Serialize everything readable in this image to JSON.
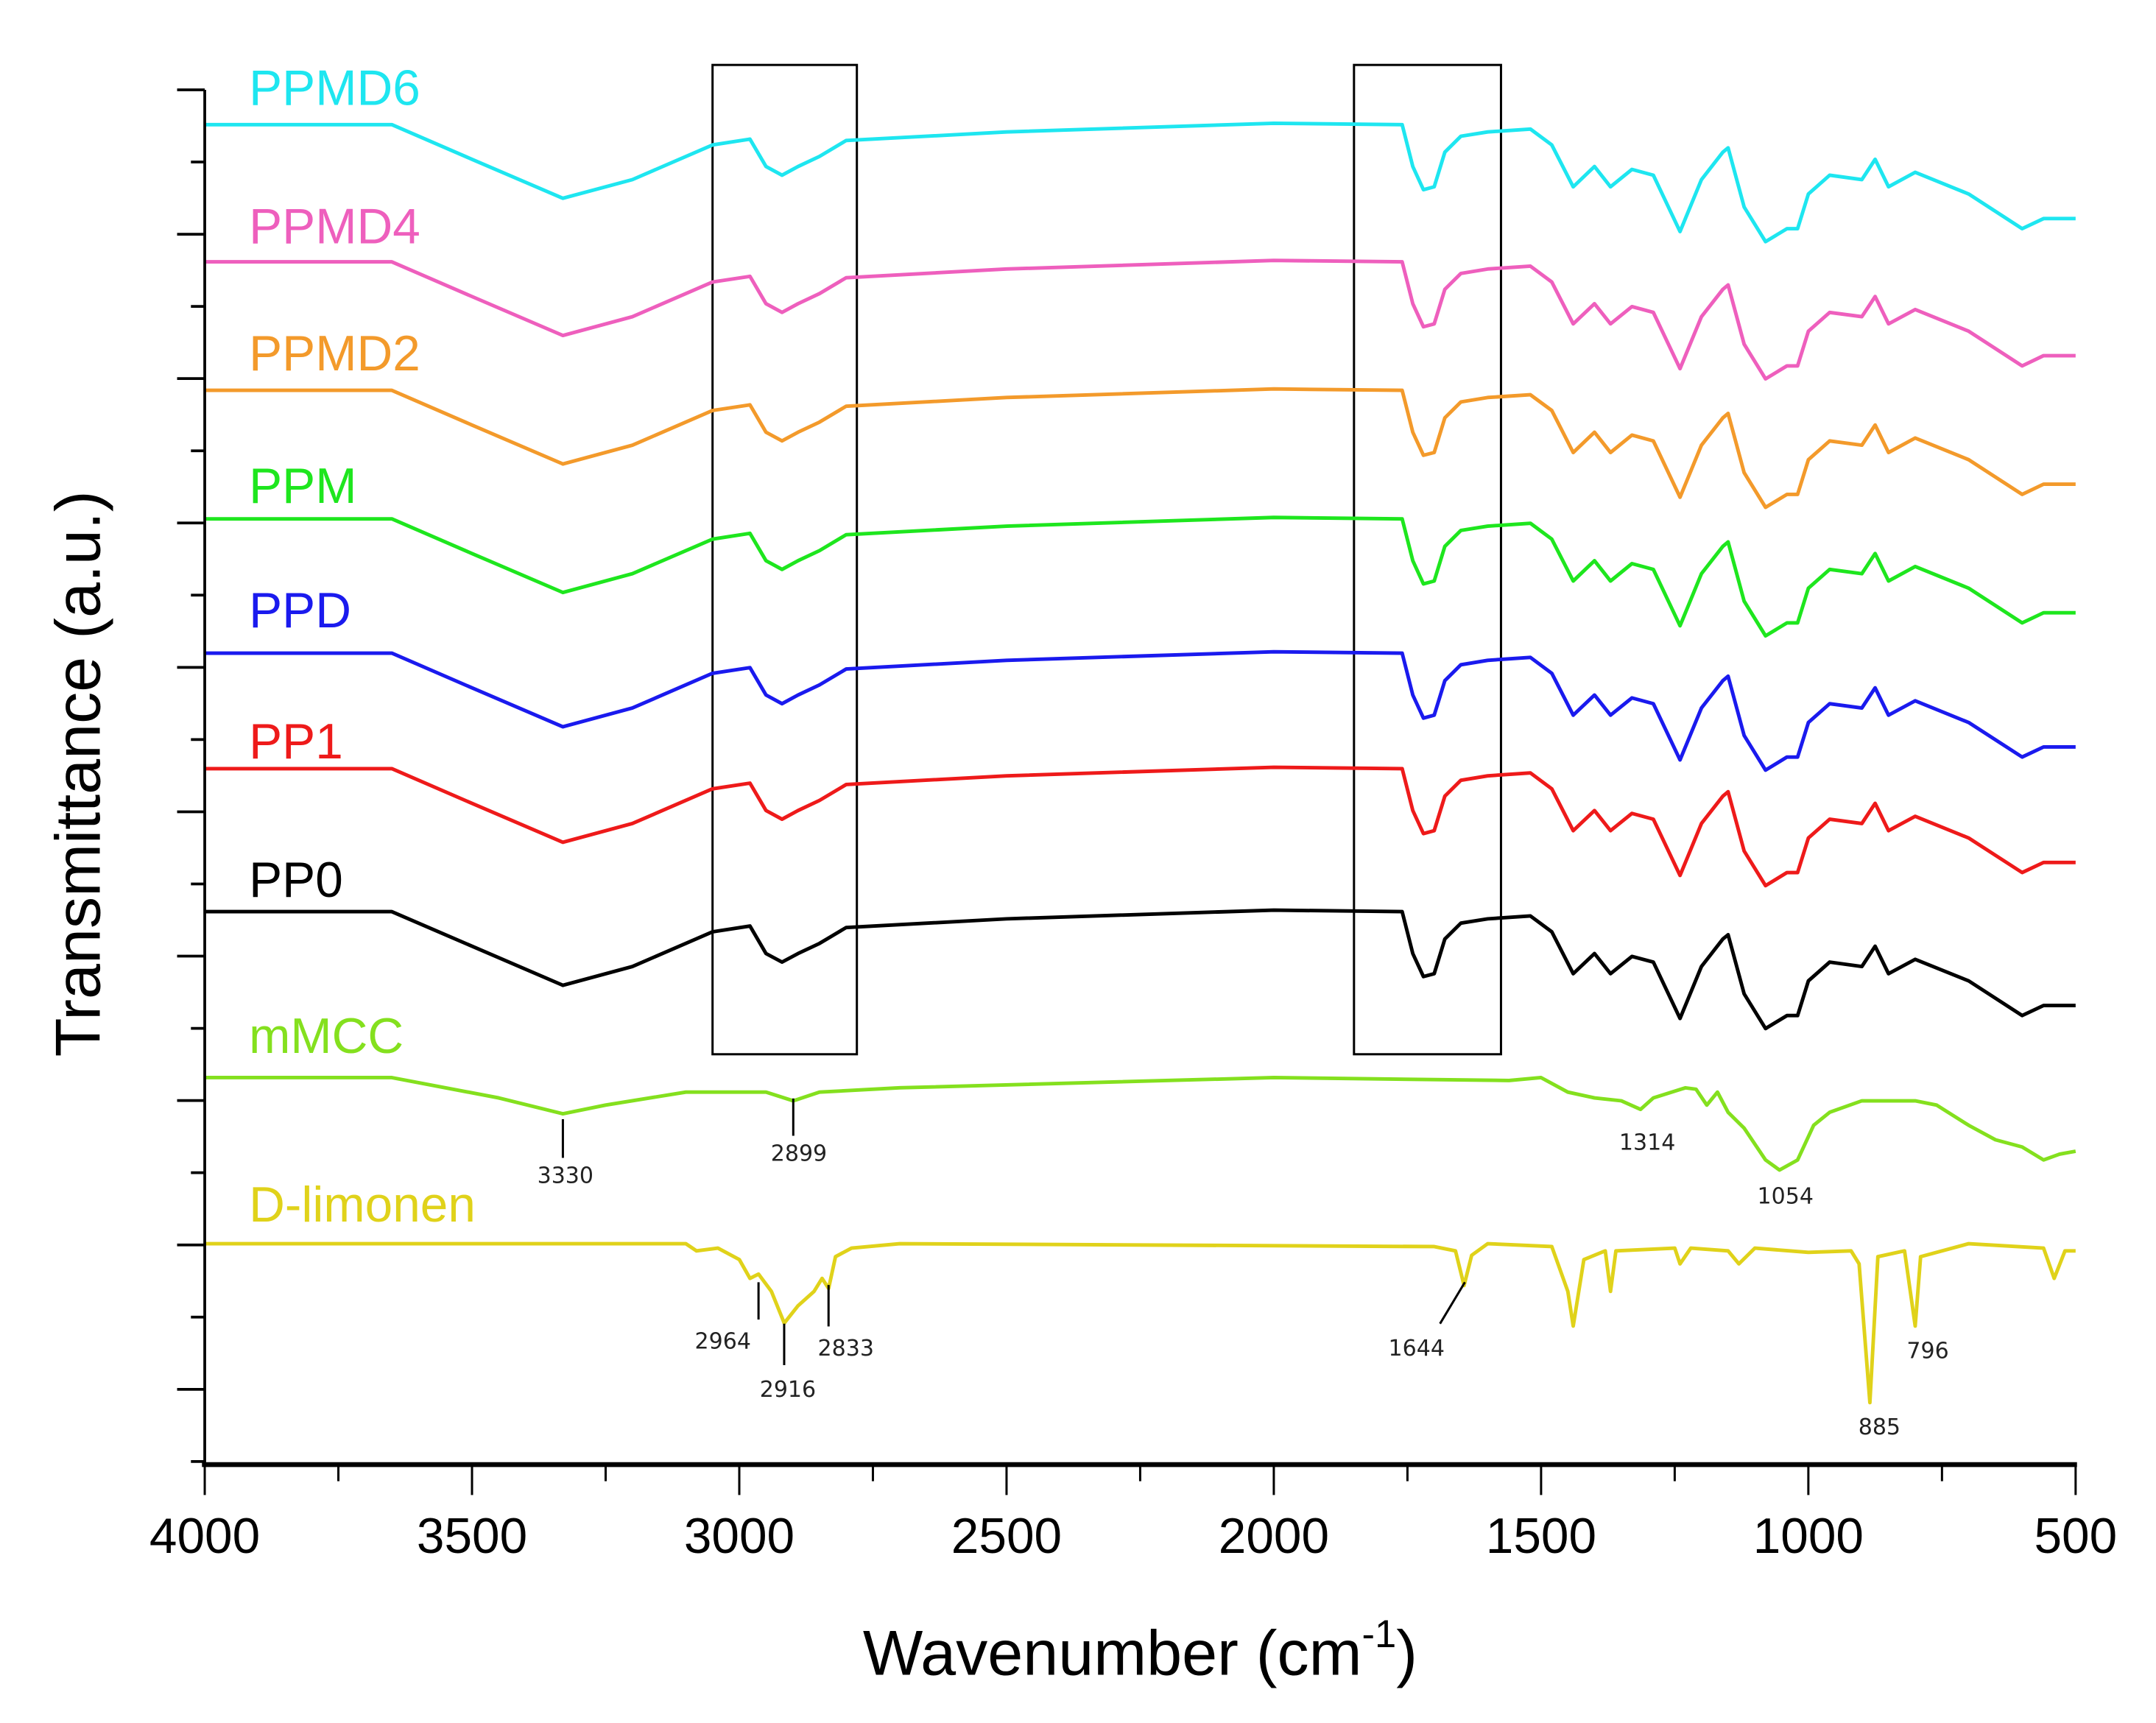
{
  "chart_data": {
    "type": "line",
    "title": "",
    "xlabel": "Wavenumber (cm",
    "xlabel_sup": "-1",
    "xlabel_close": ")",
    "ylabel": "Transmittance (a.u.)",
    "xlim": [
      4000,
      500
    ],
    "ylim": [
      0,
      9.5
    ],
    "x_ticks": [
      "4000",
      "3500",
      "3000",
      "2500",
      "2000",
      "1500",
      "1000",
      "500"
    ],
    "x_tick_values": [
      4000,
      3500,
      3000,
      2500,
      2000,
      1500,
      1000,
      500
    ],
    "grid": false,
    "legend": "inline-left",
    "pp_profile": [
      [
        4000,
        0
      ],
      [
        3650,
        0
      ],
      [
        3500,
        -0.24
      ],
      [
        3330,
        -0.51
      ],
      [
        3200,
        -0.38
      ],
      [
        3050,
        -0.14
      ],
      [
        2980,
        -0.1
      ],
      [
        2950,
        -0.29
      ],
      [
        2920,
        -0.35
      ],
      [
        2890,
        -0.29
      ],
      [
        2850,
        -0.22
      ],
      [
        2800,
        -0.11
      ],
      [
        2500,
        -0.05
      ],
      [
        2000,
        0.01
      ],
      [
        1760,
        0
      ],
      [
        1740,
        -0.29
      ],
      [
        1720,
        -0.45
      ],
      [
        1700,
        -0.43
      ],
      [
        1680,
        -0.19
      ],
      [
        1650,
        -0.08
      ],
      [
        1600,
        -0.05
      ],
      [
        1520,
        -0.03
      ],
      [
        1480,
        -0.14
      ],
      [
        1440,
        -0.43
      ],
      [
        1400,
        -0.29
      ],
      [
        1370,
        -0.43
      ],
      [
        1330,
        -0.31
      ],
      [
        1290,
        -0.35
      ],
      [
        1240,
        -0.74
      ],
      [
        1200,
        -0.38
      ],
      [
        1160,
        -0.19
      ],
      [
        1150,
        -0.16
      ],
      [
        1120,
        -0.57
      ],
      [
        1080,
        -0.81
      ],
      [
        1040,
        -0.72
      ],
      [
        1020,
        -0.72
      ],
      [
        1000,
        -0.48
      ],
      [
        960,
        -0.35
      ],
      [
        900,
        -0.38
      ],
      [
        875,
        -0.24
      ],
      [
        850,
        -0.43
      ],
      [
        800,
        -0.33
      ],
      [
        700,
        -0.48
      ],
      [
        600,
        -0.72
      ],
      [
        560,
        -0.65
      ],
      [
        500,
        -0.65
      ]
    ],
    "series": [
      {
        "name": "PPMD6",
        "color": "#1ee6f0",
        "offset": 9.28,
        "profile": "pp"
      },
      {
        "name": "PPMD4",
        "color": "#ee5fbd",
        "offset": 8.33,
        "profile": "pp"
      },
      {
        "name": "PPMD2",
        "color": "#f39a2b",
        "offset": 7.44,
        "profile": "pp"
      },
      {
        "name": "PPM",
        "color": "#1ee61e",
        "offset": 6.55,
        "profile": "pp"
      },
      {
        "name": "PPD",
        "color": "#1a1aee",
        "offset": 5.62,
        "profile": "pp"
      },
      {
        "name": "PP1",
        "color": "#ee1a1a",
        "offset": 4.82,
        "profile": "pp"
      },
      {
        "name": "PP0",
        "color": "#000000",
        "offset": 3.83,
        "profile": "pp"
      },
      {
        "name": "mMCC",
        "color": "#84e01e",
        "offset": 0,
        "points": [
          [
            4000,
            2.68
          ],
          [
            3650,
            2.68
          ],
          [
            3450,
            2.54
          ],
          [
            3330,
            2.43
          ],
          [
            3250,
            2.49
          ],
          [
            3100,
            2.58
          ],
          [
            2950,
            2.58
          ],
          [
            2899,
            2.52
          ],
          [
            2850,
            2.58
          ],
          [
            2700,
            2.61
          ],
          [
            2000,
            2.68
          ],
          [
            1560,
            2.66
          ],
          [
            1500,
            2.68
          ],
          [
            1450,
            2.58
          ],
          [
            1400,
            2.54
          ],
          [
            1350,
            2.52
          ],
          [
            1314,
            2.46
          ],
          [
            1290,
            2.54
          ],
          [
            1230,
            2.61
          ],
          [
            1210,
            2.6
          ],
          [
            1190,
            2.49
          ],
          [
            1170,
            2.58
          ],
          [
            1150,
            2.44
          ],
          [
            1120,
            2.33
          ],
          [
            1080,
            2.11
          ],
          [
            1054,
            2.04
          ],
          [
            1020,
            2.11
          ],
          [
            990,
            2.35
          ],
          [
            960,
            2.44
          ],
          [
            900,
            2.52
          ],
          [
            800,
            2.52
          ],
          [
            760,
            2.49
          ],
          [
            700,
            2.35
          ],
          [
            650,
            2.25
          ],
          [
            600,
            2.2
          ],
          [
            560,
            2.11
          ],
          [
            530,
            2.15
          ],
          [
            500,
            2.17
          ]
        ]
      },
      {
        "name": "D-limonen",
        "color": "#e0d21a",
        "offset": 0,
        "points": [
          [
            4000,
            1.53
          ],
          [
            3100,
            1.53
          ],
          [
            3080,
            1.48
          ],
          [
            3040,
            1.5
          ],
          [
            3000,
            1.42
          ],
          [
            2980,
            1.29
          ],
          [
            2964,
            1.32
          ],
          [
            2940,
            1.2
          ],
          [
            2916,
            0.98
          ],
          [
            2890,
            1.1
          ],
          [
            2860,
            1.2
          ],
          [
            2845,
            1.29
          ],
          [
            2833,
            1.22
          ],
          [
            2820,
            1.44
          ],
          [
            2790,
            1.5
          ],
          [
            2700,
            1.53
          ],
          [
            1700,
            1.51
          ],
          [
            1660,
            1.48
          ],
          [
            1644,
            1.24
          ],
          [
            1630,
            1.45
          ],
          [
            1600,
            1.53
          ],
          [
            1480,
            1.51
          ],
          [
            1450,
            1.2
          ],
          [
            1440,
            0.96
          ],
          [
            1420,
            1.42
          ],
          [
            1380,
            1.48
          ],
          [
            1370,
            1.2
          ],
          [
            1360,
            1.48
          ],
          [
            1250,
            1.5
          ],
          [
            1240,
            1.39
          ],
          [
            1220,
            1.5
          ],
          [
            1150,
            1.48
          ],
          [
            1130,
            1.39
          ],
          [
            1100,
            1.5
          ],
          [
            1000,
            1.47
          ],
          [
            920,
            1.48
          ],
          [
            905,
            1.39
          ],
          [
            885,
            0.43
          ],
          [
            870,
            1.44
          ],
          [
            820,
            1.48
          ],
          [
            800,
            0.96
          ],
          [
            790,
            1.44
          ],
          [
            700,
            1.53
          ],
          [
            560,
            1.5
          ],
          [
            540,
            1.29
          ],
          [
            520,
            1.48
          ],
          [
            500,
            1.48
          ]
        ]
      }
    ],
    "annotations": [
      {
        "text": "3330",
        "series": "mMCC",
        "x": 3330
      },
      {
        "text": "2899",
        "series": "mMCC",
        "x": 2899
      },
      {
        "text": "1314",
        "series": "mMCC",
        "x": 1314
      },
      {
        "text": "1054",
        "series": "mMCC",
        "x": 1054
      },
      {
        "text": "2964",
        "series": "D-limonen",
        "x": 2964
      },
      {
        "text": "2916",
        "series": "D-limonen",
        "x": 2916
      },
      {
        "text": "2833",
        "series": "D-limonen",
        "x": 2833
      },
      {
        "text": "1644",
        "series": "D-limonen",
        "x": 1644
      },
      {
        "text": "885",
        "series": "D-limonen",
        "x": 885
      },
      {
        "text": "796",
        "series": "D-limonen",
        "x": 796
      }
    ],
    "highlight_boxes": [
      [
        3050,
        2780
      ],
      [
        1850,
        1575
      ]
    ]
  }
}
